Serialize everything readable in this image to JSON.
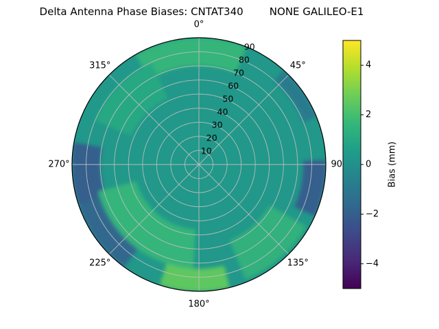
{
  "title": "Delta Antenna Phase Biases: CNTAT340        NONE GALILEO-E1",
  "chart_data": {
    "type": "heatmap",
    "subtype": "polar_contour",
    "title": "Delta Antenna Phase Biases: CNTAT340        NONE GALILEO-E1",
    "station": "CNTAT340",
    "antenna": "NONE",
    "signal": "GALILEO-E1",
    "colormap": "viridis",
    "grid": true,
    "theta_zero": "top",
    "theta_direction": "clockwise",
    "theta_ticks_deg": [
      0,
      45,
      90,
      135,
      180,
      225,
      270,
      315
    ],
    "theta_tick_labels": [
      "0°",
      "45°",
      "90°",
      "135°",
      "180°",
      "225°",
      "270°",
      "315°"
    ],
    "r_ticks": [
      10,
      20,
      30,
      40,
      50,
      60,
      70,
      80,
      90
    ],
    "r_label_angle_deg": 22.5,
    "r_max": 90,
    "colorbar": {
      "label": "Bias (mm)",
      "range": [
        -5,
        5
      ],
      "ticks": [
        {
          "v": -4,
          "label": "−4"
        },
        {
          "v": -2,
          "label": "−2"
        },
        {
          "v": 0,
          "label": "0"
        },
        {
          "v": 2,
          "label": "2"
        },
        {
          "v": 4,
          "label": "4"
        }
      ],
      "position": "right"
    },
    "background_bias": 0.3,
    "regions": [
      {
        "name": "top-rim-green",
        "theta": [
          330,
          22
        ],
        "r": [
          70,
          90
        ],
        "bias": 1.6
      },
      {
        "name": "upper-left-green",
        "theta": [
          293,
          335
        ],
        "r": [
          52,
          80
        ],
        "bias": 1.0
      },
      {
        "name": "left-rim-dark",
        "theta": [
          248,
          280
        ],
        "r": [
          70,
          90
        ],
        "bias": -2.0
      },
      {
        "name": "bottomleft-green-arc",
        "theta": [
          183,
          255
        ],
        "r": [
          46,
          74
        ],
        "bias": 1.6
      },
      {
        "name": "bottomleft-dark-arc",
        "theta": [
          216,
          252
        ],
        "r": [
          74,
          90
        ],
        "bias": -1.7
      },
      {
        "name": "bottom-rim-bright",
        "theta": [
          166,
          198
        ],
        "r": [
          74,
          90
        ],
        "bias": 2.5
      },
      {
        "name": "bottomright-green",
        "theta": [
          120,
          158
        ],
        "r": [
          58,
          88
        ],
        "bias": 1.4
      },
      {
        "name": "right-rim-dark",
        "theta": [
          88,
          114
        ],
        "r": [
          74,
          90
        ],
        "bias": -2.0
      },
      {
        "name": "topright-dark",
        "theta": [
          42,
          68
        ],
        "r": [
          80,
          90
        ],
        "bias": -0.9
      }
    ]
  }
}
